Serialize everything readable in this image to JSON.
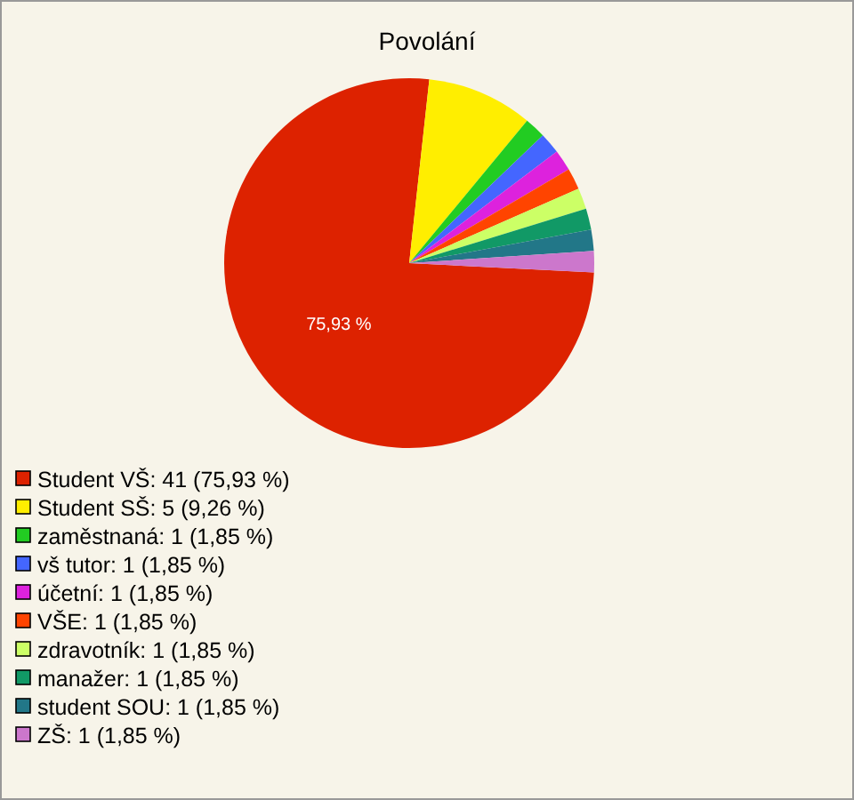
{
  "chart_data": {
    "type": "pie",
    "title": "Povolání",
    "categories": [
      "Student VŠ: 41 (75,93 %)",
      "Student SŠ: 5 (9,26 %)",
      "zaměstnaná: 1 (1,85 %)",
      "vš tutor: 1 (1,85 %)",
      "účetní: 1 (1,85 %)",
      "VŠE: 1 (1,85 %)",
      "zdravotník: 1 (1,85 %)",
      "manažer: 1 (1,85 %)",
      "student SOU: 1 (1,85 %)",
      "ZŠ: 1 (1,85 %)"
    ],
    "values": [
      75.93,
      9.26,
      1.85,
      1.85,
      1.85,
      1.85,
      1.85,
      1.85,
      1.85,
      1.85
    ],
    "colors": [
      "#dd2200",
      "#ffee00",
      "#22cc22",
      "#4466ff",
      "#dd22dd",
      "#ff4400",
      "#ccff66",
      "#119966",
      "#227788",
      "#cc77cc"
    ],
    "value_labels": [
      "75,93 %",
      null,
      null,
      null,
      null,
      null,
      null,
      null,
      null,
      null
    ],
    "legend": "bottom left"
  }
}
